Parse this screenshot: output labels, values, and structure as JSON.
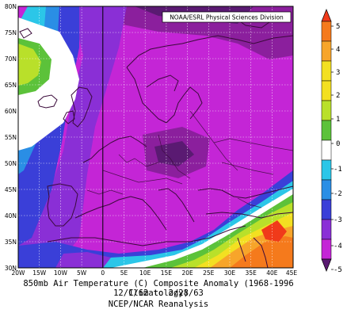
{
  "map": {
    "credit": "NOAA/ESRL Physical Sciences Division",
    "lat_labels": [
      "80N",
      "75N",
      "70N",
      "65N",
      "60N",
      "55N",
      "50N",
      "45N",
      "40N",
      "35N",
      "30N"
    ],
    "lon_labels": [
      "20W",
      "15W",
      "10W",
      "5W",
      "0",
      "5E",
      "10E",
      "15E",
      "20E",
      "25E",
      "30E",
      "35E",
      "40E",
      "45E"
    ],
    "extent": {
      "lon_min": -20,
      "lon_max": 45,
      "lat_min": 30,
      "lat_max": 80
    }
  },
  "colorbar": {
    "labels": [
      "5",
      "4",
      "3",
      "2",
      "1",
      "0",
      "-1",
      "-2",
      "-3",
      "-4",
      "-5"
    ],
    "colors": [
      "#f03a1a",
      "#f57a1c",
      "#f7a52a",
      "#f3e021",
      "#b9e02a",
      "#5cc23a",
      "#ffffff",
      "#2bc6e8",
      "#2a8ee5",
      "#3a3fd8",
      "#8a2fd6",
      "#c425d6",
      "#8b1f9d",
      "#5a1a72"
    ]
  },
  "caption": {
    "line1": "850mb Air Temperature (C) Composite Anomaly (1968-1996 Climatology)",
    "line2": "12/1/62  to 2/28/63",
    "line3": "NCEP/NCAR Reanalysis"
  }
}
